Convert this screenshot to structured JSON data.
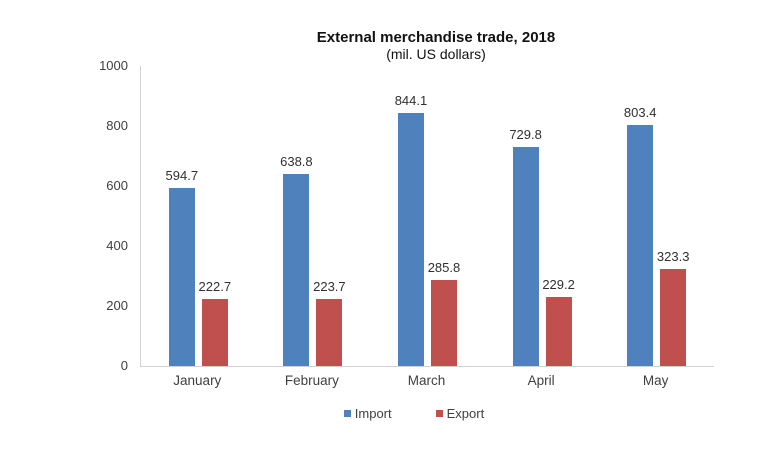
{
  "chart_data": {
    "type": "bar",
    "title": "External merchandise trade, 2018",
    "subtitle": "(mil. US dollars)",
    "categories": [
      "January",
      "February",
      "March",
      "April",
      "May"
    ],
    "series": [
      {
        "name": "Import",
        "color": "#4F81BD",
        "values": [
          594.7,
          638.8,
          844.1,
          729.8,
          803.4
        ]
      },
      {
        "name": "Export",
        "color": "#C0504D",
        "values": [
          222.7,
          223.7,
          285.8,
          229.2,
          323.3
        ]
      }
    ],
    "xlabel": "",
    "ylabel": "",
    "ylim": [
      0,
      1000
    ],
    "yticks": [
      0,
      200,
      400,
      600,
      800,
      1000
    ],
    "grid": false,
    "value_labels": true,
    "legend_position": "bottom",
    "axis_color": "#d2d2d2",
    "text_color": "#404040"
  }
}
